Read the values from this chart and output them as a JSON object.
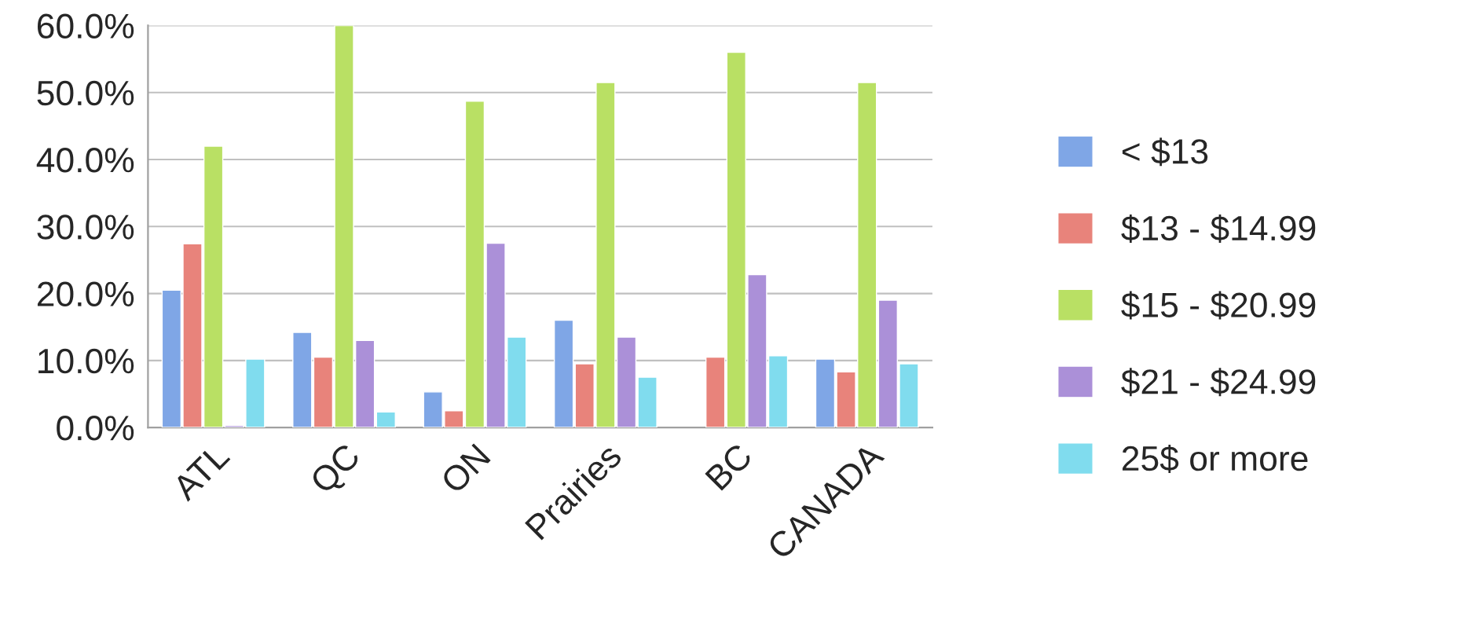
{
  "chart_data": {
    "type": "bar",
    "categories": [
      "ATL",
      "QC",
      "ON",
      "Prairies",
      "BC",
      "CANADA"
    ],
    "series": [
      {
        "name": "< $13",
        "color": "#7fa6e6",
        "values": [
          20.5,
          14.2,
          5.3,
          16,
          null,
          10.2
        ]
      },
      {
        "name": "$13 - $14.99",
        "color": "#e8837b",
        "values": [
          27.4,
          10.5,
          2.5,
          9.5,
          10.5,
          8.3
        ]
      },
      {
        "name": "$15 - $20.99",
        "color": "#b9e064",
        "values": [
          42,
          60,
          48.7,
          51.5,
          56,
          51.5
        ]
      },
      {
        "name": "$21 - $24.99",
        "color": "#ab90d8",
        "values": [
          0.3,
          13,
          27.5,
          13.5,
          22.8,
          19
        ]
      },
      {
        "name": "25$ or more",
        "color": "#80dcee",
        "values": [
          10.2,
          2.3,
          13.5,
          7.5,
          10.7,
          9.5
        ]
      }
    ],
    "ylim": [
      0,
      60
    ],
    "yticks": [
      {
        "value": 0,
        "label": "0.0%"
      },
      {
        "value": 10,
        "label": "10.0%"
      },
      {
        "value": 20,
        "label": "20.0%"
      },
      {
        "value": 30,
        "label": "30.0%"
      },
      {
        "value": 40,
        "label": "40.0%"
      },
      {
        "value": 50,
        "label": "50.0%"
      },
      {
        "value": 60,
        "label": "60.0%"
      }
    ],
    "grid": "y",
    "legend": "right"
  }
}
